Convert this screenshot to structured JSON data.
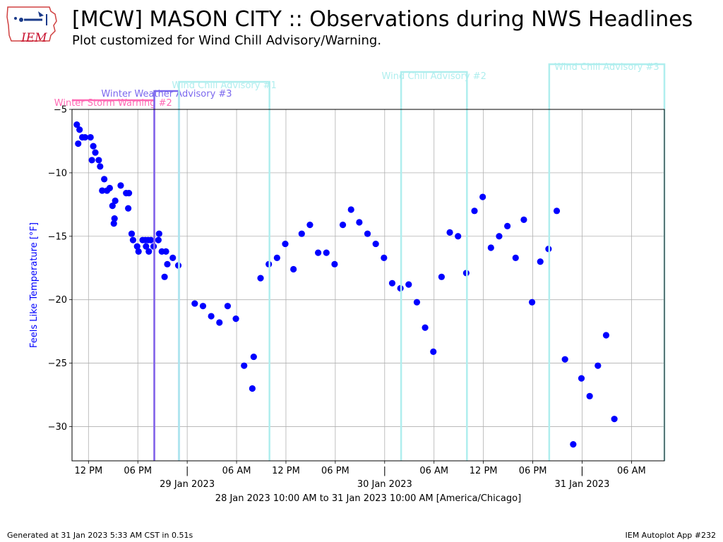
{
  "page": {
    "title": "[MCW] MASON CITY :: Observations during NWS Headlines",
    "subtitle": "Plot customized for Wind Chill Advisory/Warning.",
    "logo_text": "IEM",
    "footer_left": "Generated at 31 Jan 2023 5:33 AM CST in 0.51s",
    "footer_right": "IEM Autoplot App #232"
  },
  "chart_data": {
    "type": "scatter",
    "ylabel": "Feels Like Temperature [°F]",
    "xlabel": "28 Jan 2023 10:00 AM to 31 Jan 2023 10:00 AM [America/Chicago]",
    "xlim": [
      "2023-01-28T10:00",
      "2023-01-31T10:00"
    ],
    "ylim": [
      -32.7,
      -5
    ],
    "yticks": [
      -5,
      -10,
      -15,
      -20,
      -25,
      -30
    ],
    "xticks": [
      {
        "t": "2023-01-28T12:00",
        "label": "12 PM"
      },
      {
        "t": "2023-01-28T18:00",
        "label": "06 PM"
      },
      {
        "t": "2023-01-29T00:00",
        "label": "|",
        "date": "29 Jan 2023"
      },
      {
        "t": "2023-01-29T06:00",
        "label": "06 AM"
      },
      {
        "t": "2023-01-29T12:00",
        "label": "12 PM"
      },
      {
        "t": "2023-01-29T18:00",
        "label": "06 PM"
      },
      {
        "t": "2023-01-30T00:00",
        "label": "|",
        "date": "30 Jan 2023"
      },
      {
        "t": "2023-01-30T06:00",
        "label": "06 AM"
      },
      {
        "t": "2023-01-30T12:00",
        "label": "12 PM"
      },
      {
        "t": "2023-01-30T18:00",
        "label": "06 PM"
      },
      {
        "t": "2023-01-31T00:00",
        "label": "|",
        "date": "31 Jan 2023"
      },
      {
        "t": "2023-01-31T06:00",
        "label": "06 AM"
      }
    ],
    "grid": true,
    "point_color": "#0000ff",
    "headlines": [
      {
        "name": "Winter Storm Warning #2",
        "start": "2023-01-28T10:00",
        "end": "2023-01-28T20:00",
        "color": "#ff69b4",
        "level": 1
      },
      {
        "name": "Winter Weather Advisory #3",
        "start": "2023-01-28T20:00",
        "end": "2023-01-28T23:00",
        "color": "#7b68ee",
        "level": 2
      },
      {
        "name": "Wind Chill Advisory #1",
        "start": "2023-01-28T23:00",
        "end": "2023-01-29T10:00",
        "color": "#afeeee",
        "level": 3
      },
      {
        "name": "Wind Chill Advisory #2",
        "start": "2023-01-30T02:00",
        "end": "2023-01-30T10:00",
        "color": "#afeeee",
        "level": 4
      },
      {
        "name": "Wind Chill Advisory #3",
        "start": "2023-01-30T20:00",
        "end": "2023-01-31T10:00",
        "color": "#afeeee",
        "level": 5
      }
    ],
    "points": [
      {
        "t": "2023-01-28T10:35",
        "y": -6.2
      },
      {
        "t": "2023-01-28T10:55",
        "y": -6.6
      },
      {
        "t": "2023-01-28T10:45",
        "y": -7.7
      },
      {
        "t": "2023-01-28T11:15",
        "y": -7.2
      },
      {
        "t": "2023-01-28T11:35",
        "y": -7.2
      },
      {
        "t": "2023-01-28T12:15",
        "y": -7.2
      },
      {
        "t": "2023-01-28T12:35",
        "y": -7.9
      },
      {
        "t": "2023-01-28T12:50",
        "y": -8.4
      },
      {
        "t": "2023-01-28T12:25",
        "y": -9.0
      },
      {
        "t": "2023-01-28T13:15",
        "y": -9.0
      },
      {
        "t": "2023-01-28T13:25",
        "y": -9.5
      },
      {
        "t": "2023-01-28T13:55",
        "y": -10.5
      },
      {
        "t": "2023-01-28T13:40",
        "y": -11.4
      },
      {
        "t": "2023-01-28T14:15",
        "y": -11.4
      },
      {
        "t": "2023-01-28T14:35",
        "y": -11.2
      },
      {
        "t": "2023-01-28T15:15",
        "y": -12.2
      },
      {
        "t": "2023-01-28T14:55",
        "y": -12.6
      },
      {
        "t": "2023-01-28T15:10",
        "y": -13.6
      },
      {
        "t": "2023-01-28T15:05",
        "y": -14.0
      },
      {
        "t": "2023-01-28T15:55",
        "y": -11.0
      },
      {
        "t": "2023-01-28T16:35",
        "y": -11.6
      },
      {
        "t": "2023-01-28T16:55",
        "y": -11.6
      },
      {
        "t": "2023-01-28T16:50",
        "y": -12.8
      },
      {
        "t": "2023-01-28T17:15",
        "y": -14.8
      },
      {
        "t": "2023-01-28T17:25",
        "y": -15.3
      },
      {
        "t": "2023-01-28T17:55",
        "y": -15.8
      },
      {
        "t": "2023-01-28T18:05",
        "y": -16.2
      },
      {
        "t": "2023-01-28T18:35",
        "y": -15.3
      },
      {
        "t": "2023-01-28T18:55",
        "y": -15.3
      },
      {
        "t": "2023-01-28T19:15",
        "y": -15.3
      },
      {
        "t": "2023-01-28T19:35",
        "y": -15.3
      },
      {
        "t": "2023-01-28T19:00",
        "y": -15.8
      },
      {
        "t": "2023-01-28T19:20",
        "y": -16.2
      },
      {
        "t": "2023-01-28T19:55",
        "y": -15.8
      },
      {
        "t": "2023-01-28T20:35",
        "y": -14.8
      },
      {
        "t": "2023-01-28T20:30",
        "y": -15.3
      },
      {
        "t": "2023-01-28T20:55",
        "y": -16.2
      },
      {
        "t": "2023-01-28T21:15",
        "y": -18.2
      },
      {
        "t": "2023-01-28T21:25",
        "y": -16.2
      },
      {
        "t": "2023-01-28T21:35",
        "y": -17.2
      },
      {
        "t": "2023-01-28T22:15",
        "y": -16.7
      },
      {
        "t": "2023-01-28T22:55",
        "y": -17.3
      },
      {
        "t": "2023-01-29T00:55",
        "y": -20.3
      },
      {
        "t": "2023-01-29T01:55",
        "y": -20.5
      },
      {
        "t": "2023-01-29T02:55",
        "y": -21.3
      },
      {
        "t": "2023-01-29T03:55",
        "y": -21.8
      },
      {
        "t": "2023-01-29T04:55",
        "y": -20.5
      },
      {
        "t": "2023-01-29T05:55",
        "y": -21.5
      },
      {
        "t": "2023-01-29T06:55",
        "y": -25.2
      },
      {
        "t": "2023-01-29T07:55",
        "y": -27.0
      },
      {
        "t": "2023-01-29T08:05",
        "y": -24.5
      },
      {
        "t": "2023-01-29T08:55",
        "y": -18.3
      },
      {
        "t": "2023-01-29T09:55",
        "y": -17.2
      },
      {
        "t": "2023-01-29T10:55",
        "y": -16.7
      },
      {
        "t": "2023-01-29T11:55",
        "y": -15.6
      },
      {
        "t": "2023-01-29T12:55",
        "y": -17.6
      },
      {
        "t": "2023-01-29T13:55",
        "y": -14.8
      },
      {
        "t": "2023-01-29T14:55",
        "y": -14.1
      },
      {
        "t": "2023-01-29T15:55",
        "y": -16.3
      },
      {
        "t": "2023-01-29T16:55",
        "y": -16.3
      },
      {
        "t": "2023-01-29T17:55",
        "y": -17.2
      },
      {
        "t": "2023-01-29T18:55",
        "y": -14.1
      },
      {
        "t": "2023-01-29T19:55",
        "y": -12.9
      },
      {
        "t": "2023-01-29T20:55",
        "y": -13.9
      },
      {
        "t": "2023-01-29T21:55",
        "y": -14.8
      },
      {
        "t": "2023-01-29T22:55",
        "y": -15.6
      },
      {
        "t": "2023-01-29T23:55",
        "y": -16.7
      },
      {
        "t": "2023-01-30T00:55",
        "y": -18.7
      },
      {
        "t": "2023-01-30T01:55",
        "y": -19.1
      },
      {
        "t": "2023-01-30T02:55",
        "y": -18.8
      },
      {
        "t": "2023-01-30T03:55",
        "y": -20.2
      },
      {
        "t": "2023-01-30T04:55",
        "y": -22.2
      },
      {
        "t": "2023-01-30T05:55",
        "y": -24.1
      },
      {
        "t": "2023-01-30T06:55",
        "y": -18.2
      },
      {
        "t": "2023-01-30T07:55",
        "y": -14.7
      },
      {
        "t": "2023-01-30T08:55",
        "y": -15.0
      },
      {
        "t": "2023-01-30T09:55",
        "y": -17.9
      },
      {
        "t": "2023-01-30T10:55",
        "y": -13.0
      },
      {
        "t": "2023-01-30T11:55",
        "y": -11.9
      },
      {
        "t": "2023-01-30T12:55",
        "y": -15.9
      },
      {
        "t": "2023-01-30T13:55",
        "y": -15.0
      },
      {
        "t": "2023-01-30T14:55",
        "y": -14.2
      },
      {
        "t": "2023-01-30T15:55",
        "y": -16.7
      },
      {
        "t": "2023-01-30T16:55",
        "y": -13.7
      },
      {
        "t": "2023-01-30T17:55",
        "y": -20.2
      },
      {
        "t": "2023-01-30T18:55",
        "y": -17.0
      },
      {
        "t": "2023-01-30T19:55",
        "y": -16.0
      },
      {
        "t": "2023-01-30T20:55",
        "y": -13.0
      },
      {
        "t": "2023-01-30T21:55",
        "y": -24.7
      },
      {
        "t": "2023-01-30T22:55",
        "y": -31.4
      },
      {
        "t": "2023-01-30T23:55",
        "y": -26.2
      },
      {
        "t": "2023-01-31T00:55",
        "y": -27.6
      },
      {
        "t": "2023-01-31T01:55",
        "y": -25.2
      },
      {
        "t": "2023-01-31T02:55",
        "y": -22.8
      },
      {
        "t": "2023-01-31T03:55",
        "y": -29.4
      }
    ]
  }
}
